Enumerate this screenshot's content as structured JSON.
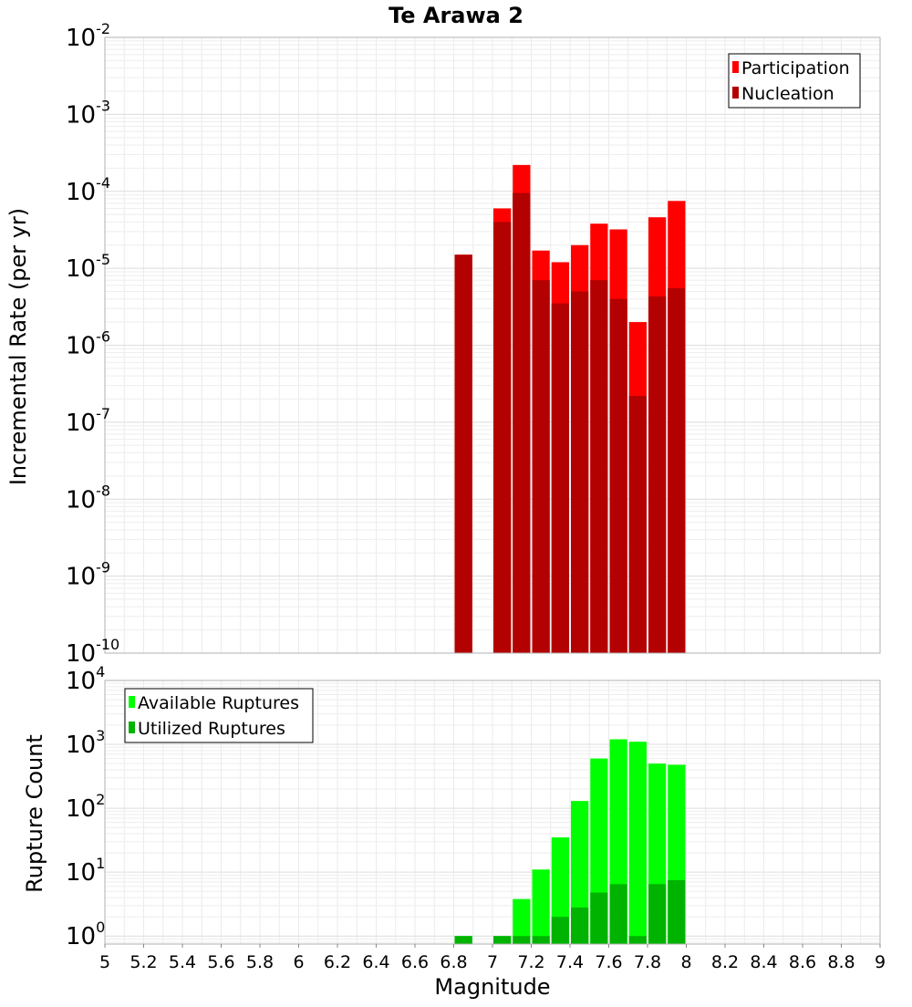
{
  "chart_data": [
    {
      "type": "bar",
      "title": "Te Arawa 2",
      "xlabel": "Magnitude",
      "ylabel": "Incremental Rate (per yr)",
      "y_scale": "log",
      "xlim": [
        5,
        9
      ],
      "ylim": [
        1e-10,
        0.01
      ],
      "y_tick_exponents": [
        "-10",
        "-9",
        "-8",
        "-7",
        "-6",
        "-5",
        "-4",
        "-3",
        "-2"
      ],
      "legend_position": "top-right",
      "grid": true,
      "x": [
        6.85,
        7.05,
        7.15,
        7.25,
        7.35,
        7.45,
        7.55,
        7.65,
        7.75,
        7.85,
        7.95
      ],
      "series": [
        {
          "name": "Participation",
          "color": "#ff0000",
          "values": [
            1.5e-05,
            6e-05,
            0.00022,
            1.7e-05,
            1.2e-05,
            2e-05,
            3.8e-05,
            3.2e-05,
            2e-06,
            4.6e-05,
            7.5e-05
          ]
        },
        {
          "name": "Nucleation",
          "color": "#b30000",
          "values": [
            1.5e-05,
            4e-05,
            9.5e-05,
            7e-06,
            3.5e-06,
            5e-06,
            7e-06,
            4e-06,
            2.2e-07,
            4.3e-06,
            5.5e-06
          ]
        }
      ]
    },
    {
      "type": "bar",
      "xlabel": "Magnitude",
      "ylabel": "Rupture Count",
      "y_scale": "log",
      "xlim": [
        5,
        9
      ],
      "ylim": [
        0.75,
        10000
      ],
      "y_tick_exponents": [
        "0",
        "1",
        "2",
        "3",
        "4"
      ],
      "x_ticks": [
        "5",
        "5.2",
        "5.4",
        "5.6",
        "5.8",
        "6",
        "6.2",
        "6.4",
        "6.6",
        "6.8",
        "7",
        "7.2",
        "7.4",
        "7.6",
        "7.8",
        "8",
        "8.2",
        "8.4",
        "8.6",
        "8.8",
        "9"
      ],
      "legend_position": "top-left",
      "grid": true,
      "x": [
        6.85,
        7.05,
        7.15,
        7.25,
        7.35,
        7.45,
        7.55,
        7.65,
        7.75,
        7.85,
        7.95
      ],
      "series": [
        {
          "name": "Available Ruptures",
          "color": "#00ff00",
          "values": [
            1,
            1,
            3.8,
            11,
            35,
            130,
            600,
            1200,
            1100,
            500,
            480
          ]
        },
        {
          "name": "Utilized Ruptures",
          "color": "#00b300",
          "values": [
            1,
            1,
            1,
            1,
            2,
            2.8,
            4.8,
            6.5,
            1,
            6.5,
            7.5
          ]
        }
      ]
    }
  ]
}
